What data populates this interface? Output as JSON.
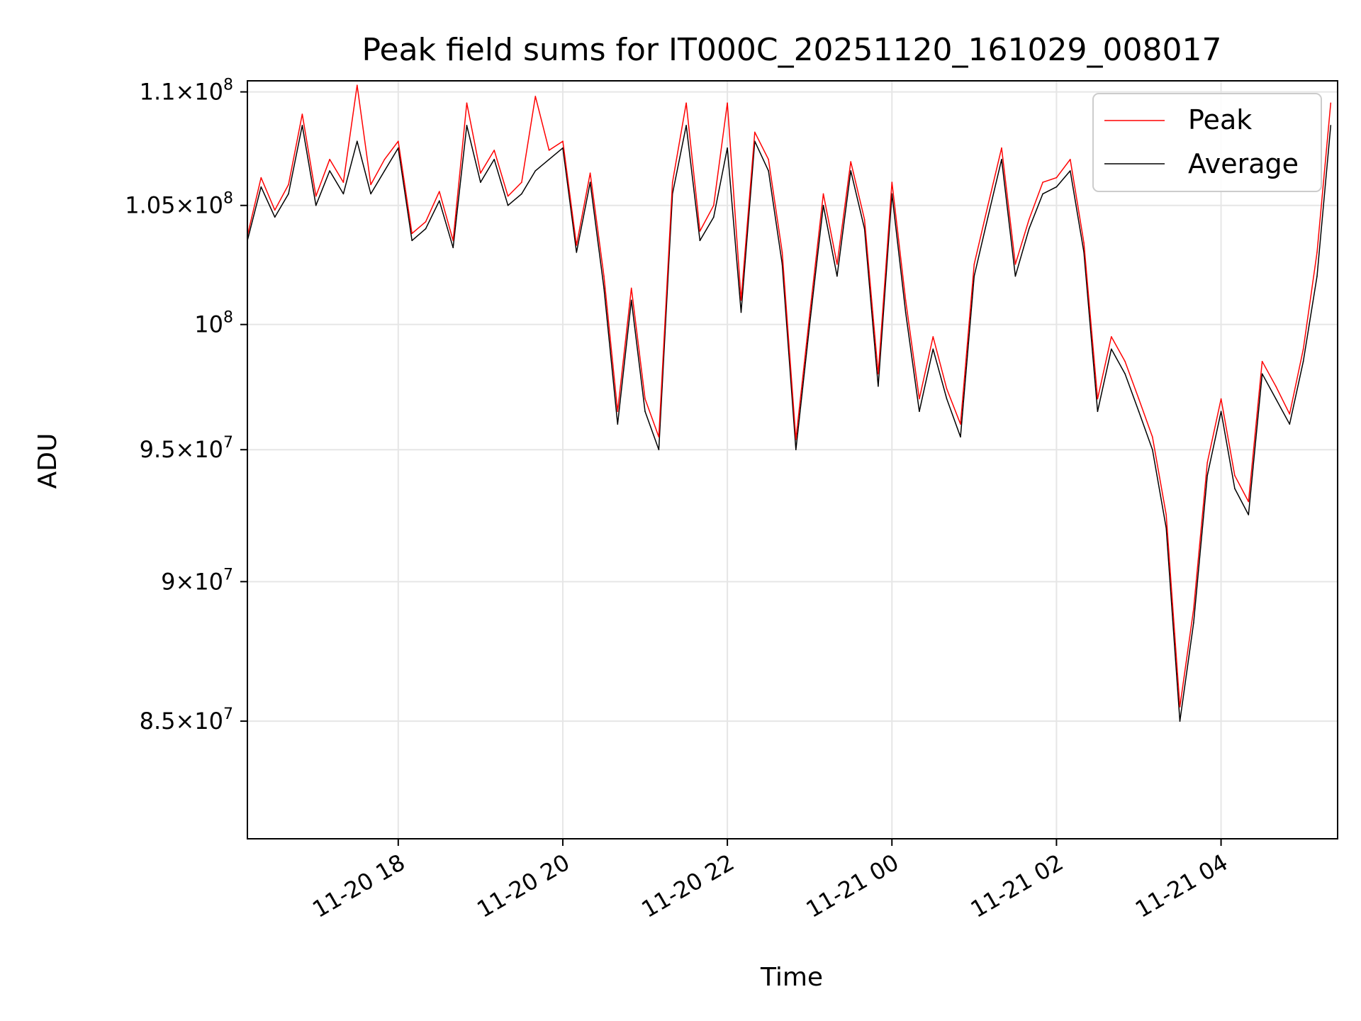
{
  "chart_data": {
    "type": "line",
    "title": "Peak field sums for IT000C_20251120_161029_008017",
    "xlabel": "Time",
    "ylabel": "ADU",
    "x_start": "2025-11-20 16:10",
    "x_end": "2025-11-21 05:25",
    "xlim_hours_note": "x values in series are times",
    "ylim": [
      81000000,
      110500000
    ],
    "grid": true,
    "legend_position": "top-right",
    "x_ticks": [
      {
        "value": "2025-11-20 18:00",
        "label": "11-20 18"
      },
      {
        "value": "2025-11-20 20:00",
        "label": "11-20 20"
      },
      {
        "value": "2025-11-20 22:00",
        "label": "11-20 22"
      },
      {
        "value": "2025-11-21 00:00",
        "label": "11-21 00"
      },
      {
        "value": "2025-11-21 02:00",
        "label": "11-21 02"
      },
      {
        "value": "2025-11-21 04:00",
        "label": "11-21 04"
      }
    ],
    "y_ticks": [
      {
        "value": 85000000,
        "mant": "8.5",
        "exp": "7"
      },
      {
        "value": 90000000,
        "mant": "9",
        "exp": "7"
      },
      {
        "value": 95000000,
        "mant": "9.5",
        "exp": "7"
      },
      {
        "value": 100000000,
        "mant": "",
        "exp": "8"
      },
      {
        "value": 105000000,
        "mant": "1.05",
        "exp": "8"
      },
      {
        "value": 110000000,
        "mant": "1.1",
        "exp": "8"
      }
    ],
    "series": [
      {
        "name": "Average",
        "color": "#000000",
        "x": [
          "2025-11-20 16:10",
          "2025-11-20 16:20",
          "2025-11-20 16:30",
          "2025-11-20 16:40",
          "2025-11-20 16:50",
          "2025-11-20 17:00",
          "2025-11-20 17:10",
          "2025-11-20 17:20",
          "2025-11-20 17:30",
          "2025-11-20 17:40",
          "2025-11-20 17:50",
          "2025-11-20 18:00",
          "2025-11-20 18:10",
          "2025-11-20 18:20",
          "2025-11-20 18:30",
          "2025-11-20 18:40",
          "2025-11-20 18:50",
          "2025-11-20 19:00",
          "2025-11-20 19:10",
          "2025-11-20 19:20",
          "2025-11-20 19:30",
          "2025-11-20 19:40",
          "2025-11-20 19:50",
          "2025-11-20 20:00",
          "2025-11-20 20:10",
          "2025-11-20 20:20",
          "2025-11-20 20:30",
          "2025-11-20 20:40",
          "2025-11-20 20:50",
          "2025-11-20 21:00",
          "2025-11-20 21:10",
          "2025-11-20 21:20",
          "2025-11-20 21:30",
          "2025-11-20 21:40",
          "2025-11-20 21:50",
          "2025-11-20 22:00",
          "2025-11-20 22:10",
          "2025-11-20 22:20",
          "2025-11-20 22:30",
          "2025-11-20 22:40",
          "2025-11-20 22:50",
          "2025-11-20 23:00",
          "2025-11-20 23:10",
          "2025-11-20 23:20",
          "2025-11-20 23:30",
          "2025-11-20 23:40",
          "2025-11-20 23:50",
          "2025-11-21 00:00",
          "2025-11-21 00:10",
          "2025-11-21 00:20",
          "2025-11-21 00:30",
          "2025-11-21 00:40",
          "2025-11-21 00:50",
          "2025-11-21 01:00",
          "2025-11-21 01:10",
          "2025-11-21 01:20",
          "2025-11-21 01:30",
          "2025-11-21 01:40",
          "2025-11-21 01:50",
          "2025-11-21 02:00",
          "2025-11-21 02:10",
          "2025-11-21 02:20",
          "2025-11-21 02:30",
          "2025-11-21 02:40",
          "2025-11-21 02:50",
          "2025-11-21 03:00",
          "2025-11-21 03:10",
          "2025-11-21 03:20",
          "2025-11-21 03:30",
          "2025-11-21 03:40",
          "2025-11-21 03:50",
          "2025-11-21 04:00",
          "2025-11-21 04:10",
          "2025-11-21 04:20",
          "2025-11-21 04:30",
          "2025-11-21 04:40",
          "2025-11-21 04:50",
          "2025-11-21 05:00",
          "2025-11-21 05:10",
          "2025-11-21 05:20"
        ],
        "values": [
          103500000,
          105800000,
          104500000,
          105500000,
          108500000,
          105000000,
          106500000,
          105500000,
          107800000,
          105500000,
          106500000,
          107500000,
          103500000,
          104000000,
          105200000,
          103200000,
          108500000,
          106000000,
          107000000,
          105000000,
          105500000,
          106500000,
          107000000,
          107500000,
          103000000,
          106000000,
          101500000,
          96000000,
          101000000,
          96500000,
          95000000,
          105500000,
          108500000,
          103500000,
          104500000,
          107500000,
          100500000,
          107800000,
          106500000,
          102500000,
          95000000,
          100000000,
          105000000,
          102000000,
          106500000,
          104000000,
          97500000,
          105500000,
          100500000,
          96500000,
          99000000,
          97000000,
          95500000,
          102000000,
          104500000,
          107000000,
          102000000,
          104000000,
          105500000,
          105800000,
          106500000,
          103000000,
          96500000,
          99000000,
          98000000,
          96500000,
          95000000,
          92000000,
          85000000,
          88500000,
          94000000,
          96500000,
          93500000,
          92500000,
          98000000,
          97000000,
          96000000,
          98500000,
          102000000,
          108500000
        ]
      },
      {
        "name": "Peak",
        "color": "#ff0000",
        "x": [
          "2025-11-20 16:10",
          "2025-11-20 16:20",
          "2025-11-20 16:30",
          "2025-11-20 16:40",
          "2025-11-20 16:50",
          "2025-11-20 17:00",
          "2025-11-20 17:10",
          "2025-11-20 17:20",
          "2025-11-20 17:30",
          "2025-11-20 17:40",
          "2025-11-20 17:50",
          "2025-11-20 18:00",
          "2025-11-20 18:10",
          "2025-11-20 18:20",
          "2025-11-20 18:30",
          "2025-11-20 18:40",
          "2025-11-20 18:50",
          "2025-11-20 19:00",
          "2025-11-20 19:10",
          "2025-11-20 19:20",
          "2025-11-20 19:30",
          "2025-11-20 19:40",
          "2025-11-20 19:50",
          "2025-11-20 20:00",
          "2025-11-20 20:10",
          "2025-11-20 20:20",
          "2025-11-20 20:30",
          "2025-11-20 20:40",
          "2025-11-20 20:50",
          "2025-11-20 21:00",
          "2025-11-20 21:10",
          "2025-11-20 21:20",
          "2025-11-20 21:30",
          "2025-11-20 21:40",
          "2025-11-20 21:50",
          "2025-11-20 22:00",
          "2025-11-20 22:10",
          "2025-11-20 22:20",
          "2025-11-20 22:30",
          "2025-11-20 22:40",
          "2025-11-20 22:50",
          "2025-11-20 23:00",
          "2025-11-20 23:10",
          "2025-11-20 23:20",
          "2025-11-20 23:30",
          "2025-11-20 23:40",
          "2025-11-20 23:50",
          "2025-11-21 00:00",
          "2025-11-21 00:10",
          "2025-11-21 00:20",
          "2025-11-21 00:30",
          "2025-11-21 00:40",
          "2025-11-21 00:50",
          "2025-11-21 01:00",
          "2025-11-21 01:10",
          "2025-11-21 01:20",
          "2025-11-21 01:30",
          "2025-11-21 01:40",
          "2025-11-21 01:50",
          "2025-11-21 02:00",
          "2025-11-21 02:10",
          "2025-11-21 02:20",
          "2025-11-21 02:30",
          "2025-11-21 02:40",
          "2025-11-21 02:50",
          "2025-11-21 03:00",
          "2025-11-21 03:10",
          "2025-11-21 03:20",
          "2025-11-21 03:30",
          "2025-11-21 03:40",
          "2025-11-21 03:50",
          "2025-11-21 04:00",
          "2025-11-21 04:10",
          "2025-11-21 04:20",
          "2025-11-21 04:30",
          "2025-11-21 04:40",
          "2025-11-21 04:50",
          "2025-11-21 05:00",
          "2025-11-21 05:10",
          "2025-11-21 05:20"
        ],
        "values": [
          103700000,
          106200000,
          104800000,
          105900000,
          109000000,
          105400000,
          107000000,
          106000000,
          110300000,
          105900000,
          107000000,
          107800000,
          103800000,
          104300000,
          105600000,
          103500000,
          109500000,
          106400000,
          107400000,
          105400000,
          106000000,
          109800000,
          107400000,
          107800000,
          103300000,
          106400000,
          102000000,
          96500000,
          101500000,
          97000000,
          95500000,
          106000000,
          109500000,
          103900000,
          105000000,
          109500000,
          101000000,
          108200000,
          107000000,
          103000000,
          95400000,
          100400000,
          105500000,
          102500000,
          106900000,
          104400000,
          98000000,
          106000000,
          101000000,
          97000000,
          99500000,
          97400000,
          96000000,
          102500000,
          105000000,
          107500000,
          102500000,
          104400000,
          106000000,
          106200000,
          107000000,
          103400000,
          97000000,
          99500000,
          98500000,
          97000000,
          95500000,
          92500000,
          85500000,
          89000000,
          94500000,
          97000000,
          94000000,
          93000000,
          98500000,
          97500000,
          96400000,
          99000000,
          103000000,
          109500000
        ]
      }
    ]
  }
}
